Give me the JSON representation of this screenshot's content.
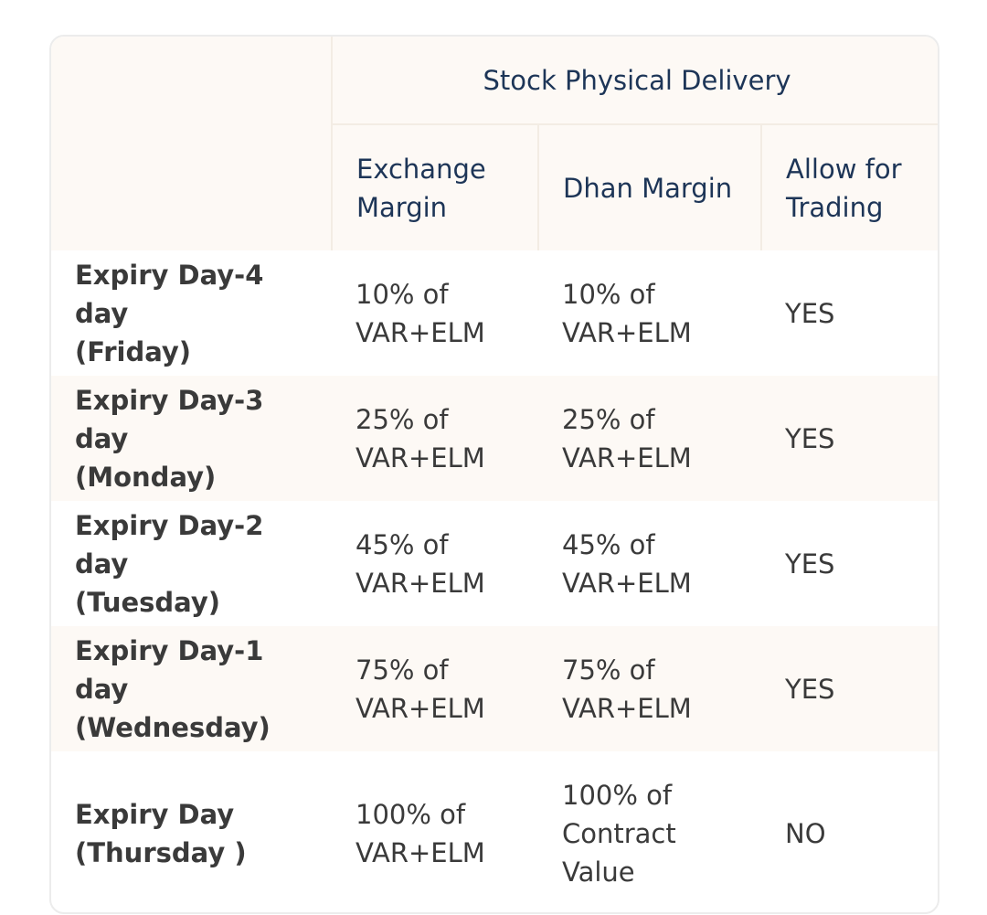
{
  "table": {
    "group_header": "Stock Physical Delivery",
    "columns": [
      "Exchange\nMargin",
      "Dhan Margin",
      "Allow for\nTrading"
    ],
    "rows": [
      {
        "label": "Expiry Day-4 day\n(Friday)",
        "exchange_margin": "10% of\nVAR+ELM",
        "dhan_margin": "10% of\nVAR+ELM",
        "allow": "YES"
      },
      {
        "label": "Expiry Day-3 day\n(Monday)",
        "exchange_margin": "25% of\nVAR+ELM",
        "dhan_margin": "25% of\nVAR+ELM",
        "allow": "YES"
      },
      {
        "label": "Expiry Day-2 day\n(Tuesday)",
        "exchange_margin": "45% of\nVAR+ELM",
        "dhan_margin": "45% of\nVAR+ELM",
        "allow": "YES"
      },
      {
        "label": "Expiry Day-1 day\n(Wednesday)",
        "exchange_margin": "75% of\nVAR+ELM",
        "dhan_margin": "75% of\nVAR+ELM",
        "allow": "YES"
      },
      {
        "label": "Expiry Day\n(Thursday )",
        "exchange_margin": "100% of\nVAR+ELM",
        "dhan_margin": "100% of\nContract\nValue",
        "allow": "NO"
      }
    ],
    "colors": {
      "header_bg": "#fdf9f5",
      "header_text": "#1d3557",
      "border": "#ececec"
    }
  }
}
